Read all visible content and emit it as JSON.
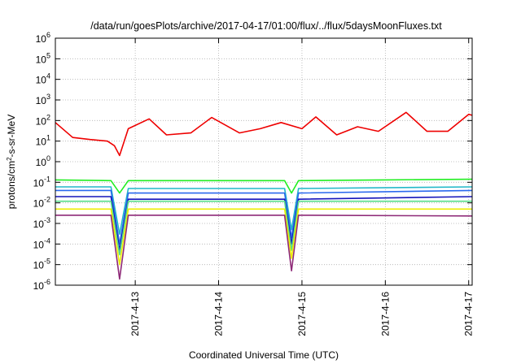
{
  "chart_data": {
    "type": "line",
    "title": "/data/run/goesPlots/archive/2017-04-17/01:00/flux/../flux/5daysMoonFluxes.txt",
    "xlabel": "Coordinated Universal Time (UTC)",
    "ylabel": {
      "pre": "protons/cm",
      "sup": "2",
      "post": "-s-sr-MeV"
    },
    "yscale": "log",
    "ylim": [
      1e-06,
      1000000.0
    ],
    "yticks": [
      {
        "value": 1e-06,
        "base": "10",
        "exp": "-6"
      },
      {
        "value": 1e-05,
        "base": "10",
        "exp": "-5"
      },
      {
        "value": 0.0001,
        "base": "10",
        "exp": "-4"
      },
      {
        "value": 0.001,
        "base": "10",
        "exp": "-3"
      },
      {
        "value": 0.01,
        "base": "10",
        "exp": "-2"
      },
      {
        "value": 0.1,
        "base": "10",
        "exp": "-1"
      },
      {
        "value": 1,
        "base": "10",
        "exp": "0"
      },
      {
        "value": 10,
        "base": "10",
        "exp": "1"
      },
      {
        "value": 100,
        "base": "10",
        "exp": "2"
      },
      {
        "value": 1000,
        "base": "10",
        "exp": "3"
      },
      {
        "value": 10000,
        "base": "10",
        "exp": "4"
      },
      {
        "value": 100000,
        "base": "10",
        "exp": "5"
      },
      {
        "value": 1000000,
        "base": "10",
        "exp": "6"
      }
    ],
    "xlim": [
      "2017-04-12T01:00",
      "2017-04-17T01:00"
    ],
    "xticks": [
      "2017-4-13",
      "2017-4-14",
      "2017-4-15",
      "2017-4-16",
      "2017-4-17"
    ],
    "grid": true,
    "series": [
      {
        "color": "#ee0000",
        "x": [
          "2017-04-12T01:00",
          "2017-04-12T06:00",
          "2017-04-12T11:00",
          "2017-04-12T16:00",
          "2017-04-12T18:00",
          "2017-04-12T19:30",
          "2017-04-12T22:00",
          "2017-04-13T04:00",
          "2017-04-13T09:00",
          "2017-04-13T16:00",
          "2017-04-13T22:00",
          "2017-04-14T06:00",
          "2017-04-14T12:00",
          "2017-04-14T18:00",
          "2017-04-15T00:00",
          "2017-04-15T04:00",
          "2017-04-15T10:00",
          "2017-04-15T16:00",
          "2017-04-15T22:00",
          "2017-04-16T06:00",
          "2017-04-16T12:00",
          "2017-04-16T18:00",
          "2017-04-17T00:00",
          "2017-04-17T01:00"
        ],
        "values": [
          80,
          15,
          12,
          10,
          6,
          2,
          40,
          120,
          20,
          25,
          140,
          25,
          40,
          80,
          40,
          150,
          20,
          50,
          30,
          250,
          30,
          30,
          200,
          180
        ]
      },
      {
        "color": "#22ee22",
        "x": [
          "2017-04-12T01:00",
          "2017-04-12T17:00",
          "2017-04-12T19:30",
          "2017-04-12T22:00",
          "2017-04-14T19:00",
          "2017-04-14T21:00",
          "2017-04-14T23:00",
          "2017-04-16T00:00",
          "2017-04-17T01:00"
        ],
        "values": [
          0.13,
          0.12,
          0.03,
          0.12,
          0.12,
          0.03,
          0.12,
          0.13,
          0.14
        ]
      },
      {
        "color": "#22b8c8",
        "x": [
          "2017-04-12T01:00",
          "2017-04-12T17:00",
          "2017-04-12T19:30",
          "2017-04-12T22:00",
          "2017-04-14T19:00",
          "2017-04-14T21:00",
          "2017-04-14T23:00",
          "2017-04-17T01:00"
        ],
        "values": [
          0.06,
          0.06,
          0.0003,
          0.05,
          0.05,
          0.0005,
          0.05,
          0.06
        ]
      },
      {
        "color": "#2a68ee",
        "x": [
          "2017-04-12T01:00",
          "2017-04-12T17:00",
          "2017-04-12T19:30",
          "2017-04-12T22:00",
          "2017-04-14T19:00",
          "2017-04-14T21:00",
          "2017-04-14T23:00",
          "2017-04-17T01:00"
        ],
        "values": [
          0.04,
          0.04,
          0.0001,
          0.03,
          0.03,
          0.0002,
          0.03,
          0.04
        ]
      },
      {
        "color": "#1515bb",
        "x": [
          "2017-04-12T01:00",
          "2017-04-12T17:00",
          "2017-04-12T19:30",
          "2017-04-12T22:00",
          "2017-04-14T19:00",
          "2017-04-14T21:00",
          "2017-04-14T23:00",
          "2017-04-17T01:00"
        ],
        "values": [
          0.02,
          0.02,
          5e-05,
          0.015,
          0.015,
          0.0001,
          0.015,
          0.02
        ]
      },
      {
        "color": "#55dd88",
        "x": [
          "2017-04-12T01:00",
          "2017-04-12T17:00",
          "2017-04-12T19:30",
          "2017-04-12T22:00",
          "2017-04-14T19:00",
          "2017-04-14T21:00",
          "2017-04-14T23:00",
          "2017-04-17T01:00"
        ],
        "values": [
          0.012,
          0.012,
          3e-05,
          0.012,
          0.012,
          5e-05,
          0.012,
          0.012
        ]
      },
      {
        "color": "#eeee00",
        "x": [
          "2017-04-12T01:00",
          "2017-04-12T17:00",
          "2017-04-12T19:30",
          "2017-04-12T22:00",
          "2017-04-14T19:00",
          "2017-04-14T21:00",
          "2017-04-14T23:00",
          "2017-04-17T01:00"
        ],
        "values": [
          0.005,
          0.005,
          1e-05,
          0.005,
          0.005,
          2e-05,
          0.005,
          0.005
        ]
      },
      {
        "color": "#8e2a78",
        "x": [
          "2017-04-12T01:00",
          "2017-04-12T17:00",
          "2017-04-12T19:30",
          "2017-04-12T22:00",
          "2017-04-14T19:00",
          "2017-04-14T21:00",
          "2017-04-14T23:00",
          "2017-04-17T01:00"
        ],
        "values": [
          0.0025,
          0.0025,
          2e-06,
          0.0025,
          0.0025,
          5e-06,
          0.0025,
          0.0023
        ]
      }
    ]
  }
}
